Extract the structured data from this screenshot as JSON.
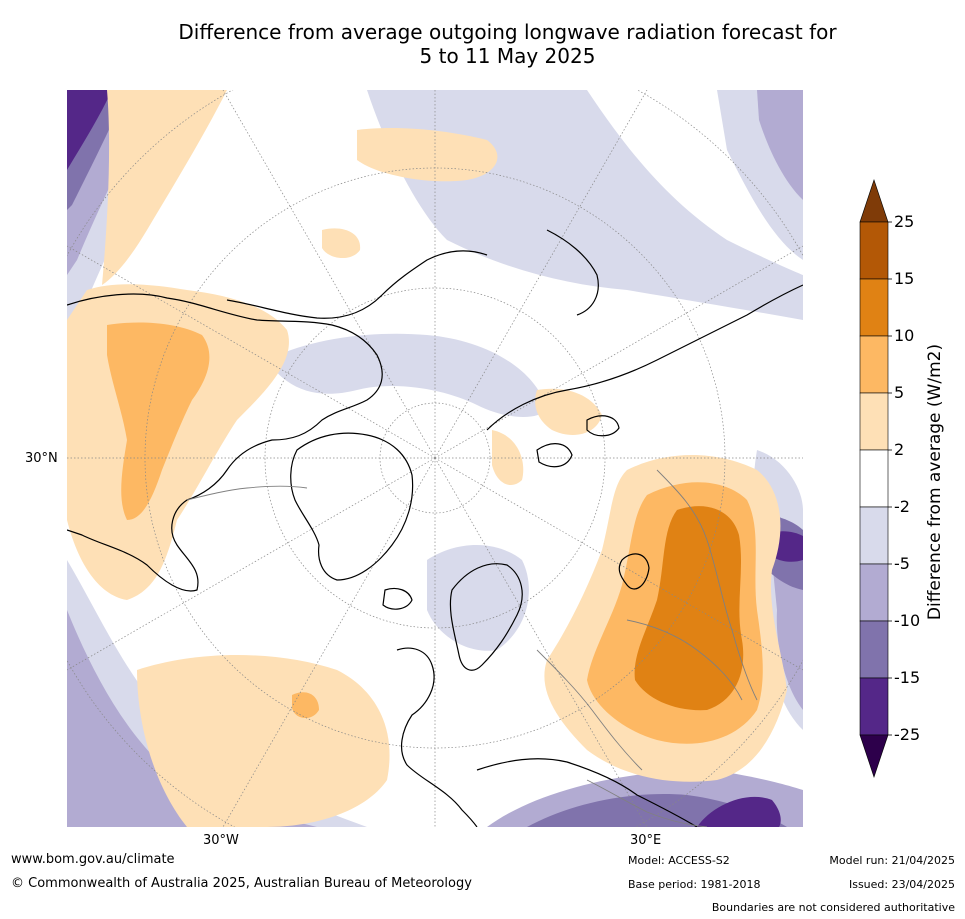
{
  "title": {
    "line1": "Difference from average outgoing longwave radiation forecast for",
    "line2": "5 to 11 May 2025"
  },
  "map": {
    "projection": "north-polar-stereographic",
    "lat_label": "30°N",
    "lon_labels": [
      "30°W",
      "30°E"
    ],
    "colors": {
      "land_outline": "#000000",
      "borders": "#808080",
      "graticule": "#888888"
    }
  },
  "colorbar": {
    "label": "Difference from average (W/m2)",
    "ticks": [
      "25",
      "15",
      "10",
      "5",
      "2",
      "-2",
      "-5",
      "-10",
      "-15",
      "-25"
    ],
    "bins": [
      {
        "range": "above 25",
        "color": "#7f3b08"
      },
      {
        "range": "15 to 25",
        "color": "#b35806"
      },
      {
        "range": "10 to 15",
        "color": "#e08214"
      },
      {
        "range": "5 to 10",
        "color": "#fdb863"
      },
      {
        "range": "2 to 5",
        "color": "#fee0b6"
      },
      {
        "range": "-2 to 2",
        "color": "#ffffff"
      },
      {
        "range": "-5 to -2",
        "color": "#d8daeb"
      },
      {
        "range": "-10 to -5",
        "color": "#b2abd2"
      },
      {
        "range": "-15 to -10",
        "color": "#8073ac"
      },
      {
        "range": "-25 to -15",
        "color": "#542788"
      },
      {
        "range": "below -25",
        "color": "#2d004b"
      }
    ]
  },
  "footer": {
    "website": "www.bom.gov.au/climate",
    "copyright": "© Commonwealth of Australia 2025, Australian Bureau of Meteorology",
    "model": "Model: ACCESS-S2",
    "base_period": "Base period: 1981-2018",
    "model_run": "Model run: 21/04/2025",
    "issued": "Issued: 23/04/2025",
    "disclaimer": "Boundaries are not considered authoritative"
  }
}
